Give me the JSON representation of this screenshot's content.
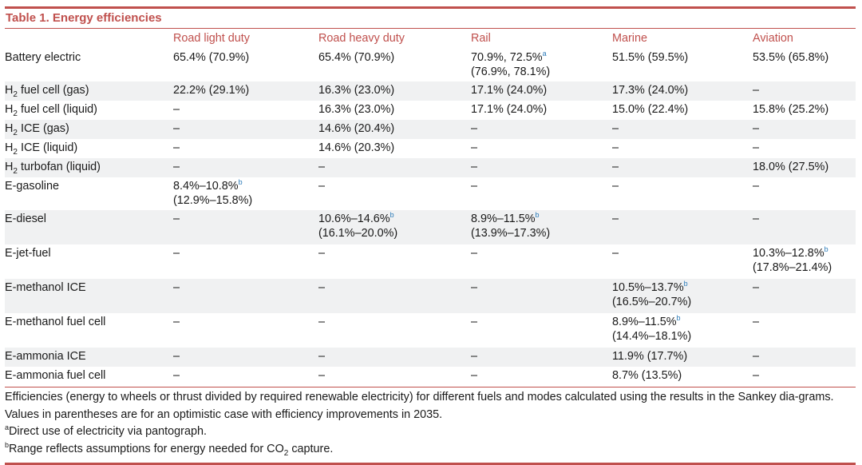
{
  "table": {
    "title": "Table 1.  Energy efficiencies",
    "columns": [
      "",
      "Road light duty",
      "Road heavy duty",
      "Rail",
      "Marine",
      "Aviation"
    ],
    "rows": [
      {
        "label": "Battery electric",
        "cells": [
          "65.4% (70.9%)",
          "65.4% (70.9%)",
          "70.9%, 72.5%|a|(76.9%, 78.1%)",
          "51.5% (59.5%)",
          "53.5% (65.8%)"
        ]
      },
      {
        "label": "H|2| fuel cell (gas)",
        "cells": [
          "22.2% (29.1%)",
          "16.3% (23.0%)",
          "17.1% (24.0%)",
          "17.3% (24.0%)",
          "–"
        ]
      },
      {
        "label": "H|2| fuel cell (liquid)",
        "cells": [
          "–",
          "16.3% (23.0%)",
          "17.1% (24.0%)",
          "15.0% (22.4%)",
          "15.8% (25.2%)"
        ]
      },
      {
        "label": "H|2| ICE (gas)",
        "cells": [
          "–",
          "14.6% (20.4%)",
          "–",
          "–",
          "–"
        ]
      },
      {
        "label": "H|2| ICE (liquid)",
        "cells": [
          "–",
          "14.6% (20.3%)",
          "–",
          "–",
          "–"
        ]
      },
      {
        "label": "H|2| turbofan (liquid)",
        "cells": [
          "–",
          "–",
          "–",
          "–",
          "18.0% (27.5%)"
        ]
      },
      {
        "label": "E-gasoline",
        "cells": [
          "8.4%–10.8%|b|(12.9%–15.8%)",
          "–",
          "–",
          "–",
          "–"
        ]
      },
      {
        "label": "E-diesel",
        "cells": [
          "–",
          "10.6%–14.6%|b|(16.1%–20.0%)",
          "8.9%–11.5%|b|(13.9%–17.3%)",
          "–",
          "–"
        ]
      },
      {
        "label": "E-jet-fuel",
        "cells": [
          "–",
          "–",
          "–",
          "–",
          "10.3%–12.8%|b|(17.8%–21.4%)"
        ]
      },
      {
        "label": "E-methanol ICE",
        "cells": [
          "–",
          "–",
          "–",
          "10.5%–13.7%|b|(16.5%–20.7%)",
          "–"
        ]
      },
      {
        "label": "E-methanol fuel cell",
        "cells": [
          "–",
          "–",
          "–",
          "8.9%–11.5%|b|(14.4%–18.1%)",
          "–"
        ]
      },
      {
        "label": "E-ammonia ICE",
        "cells": [
          "–",
          "–",
          "–",
          "11.9% (17.7%)",
          "–"
        ]
      },
      {
        "label": "E-ammonia fuel cell",
        "cells": [
          "–",
          "–",
          "–",
          "8.7% (13.5%)",
          "–"
        ]
      }
    ],
    "footnote_main": "Efficiencies (energy to wheels or thrust divided by required renewable electricity) for different fuels and modes calculated using the results in the Sankey dia-grams. Values in parentheses are for an optimistic case with efficiency improvements in 2035.",
    "footnote_a_mark": "a",
    "footnote_a": "Direct use of electricity via pantograph.",
    "footnote_b_mark": "b",
    "footnote_b_pre": "Range reflects assumptions for energy needed for CO",
    "footnote_b_sub": "2",
    "footnote_b_post": " capture."
  },
  "colors": {
    "accent": "#c0504d",
    "stripe": "#f0f1f2",
    "sup": "#2a7ab8"
  }
}
